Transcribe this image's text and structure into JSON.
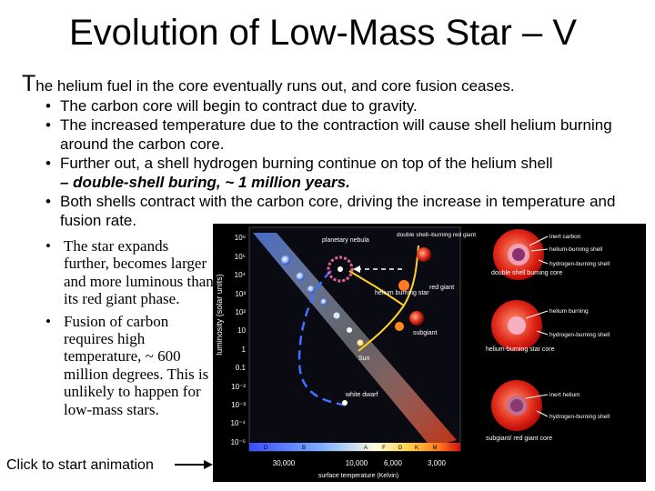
{
  "slide": {
    "title": "Evolution of Low-Mass Star – V",
    "intro_cap": "T",
    "intro_rest": "he helium fuel in the core eventually runs out, and core fusion ceases.",
    "bullets": [
      "The carbon core will begin to contract due to gravity.",
      "The increased temperature due to the contraction will cause shell helium burning around the carbon core.",
      "Further out, a shell hydrogen burning continue on top of the helium shell",
      "Both shells contract with the carbon core, driving the increase in temperature and fusion rate."
    ],
    "bullet3_emphasis": "– double-shell buring, ~ 1 million years.",
    "side_bullets": [
      "The star expands further, becomes larger and more luminous than its red giant phase.",
      "Fusion of carbon requires high temperature, ~ 600 million degrees. This is unlikely to happen for low-mass stars."
    ],
    "animation_label": "Click to start animation"
  },
  "diagram": {
    "y_axis_label": "luminosity (solar units)",
    "y_ticks": [
      "10⁶",
      "10⁵",
      "10⁴",
      "10³",
      "10²",
      "10",
      "1",
      "0.1",
      "10⁻²",
      "10⁻³",
      "10⁻⁴",
      "10⁻⁵"
    ],
    "spectral_classes": [
      "O",
      "B",
      "A",
      "F",
      "G",
      "K",
      "M"
    ],
    "x_ticks": [
      "30,000",
      "10,000",
      "6,000",
      "3,000"
    ],
    "x_axis_label": "surface temperature (Kelvin)",
    "labels": {
      "planetary_nebula": "planetary nebula",
      "double_shell_giant": "double shell–burning red giant",
      "helium_burning_star": "helium burning star",
      "red_giant": "red giant",
      "subgiant": "subgiant",
      "sun": "Sun",
      "white_dwarf": "white dwarf"
    },
    "panels": [
      {
        "caption": "double shell burning core",
        "labels": [
          "inert carbon",
          "helium-burning shell",
          "hydrogen-burning shell"
        ]
      },
      {
        "caption": "helium-burning star core",
        "labels": [
          "helium burning",
          "hydrogen-burning shell"
        ]
      },
      {
        "caption": "subgiant/ red giant core",
        "labels": [
          "inert helium",
          "hydrogen-burning shell"
        ]
      }
    ]
  }
}
